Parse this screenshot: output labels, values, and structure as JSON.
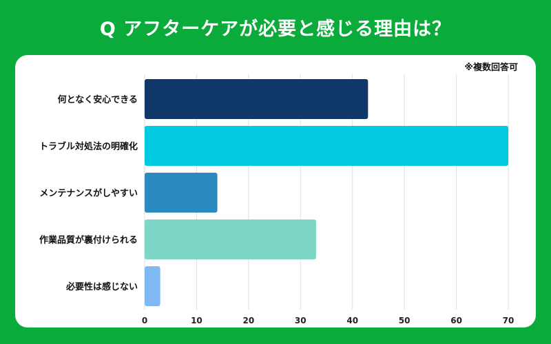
{
  "header": {
    "title": "Q アフターケアが必要と感じる理由は？"
  },
  "note": "※複数回答可",
  "chart_data": {
    "type": "bar",
    "orientation": "horizontal",
    "title": "Q アフターケアが必要と感じる理由は？",
    "categories": [
      "何となく安心できる",
      "トラブル対処法の明確化",
      "メンテナンスがしやすい",
      "作業品質が裏付けられる",
      "必要性は感じない"
    ],
    "values": [
      43,
      70,
      14,
      33,
      3
    ],
    "colors": [
      "#10386b",
      "#00c9e0",
      "#2d8ac0",
      "#7ed6c6",
      "#7fb8f2"
    ],
    "xlim": [
      0,
      70
    ],
    "xticks": [
      0,
      10,
      20,
      30,
      40,
      50,
      60,
      70
    ],
    "grid": true,
    "xlabel": "",
    "ylabel": ""
  }
}
